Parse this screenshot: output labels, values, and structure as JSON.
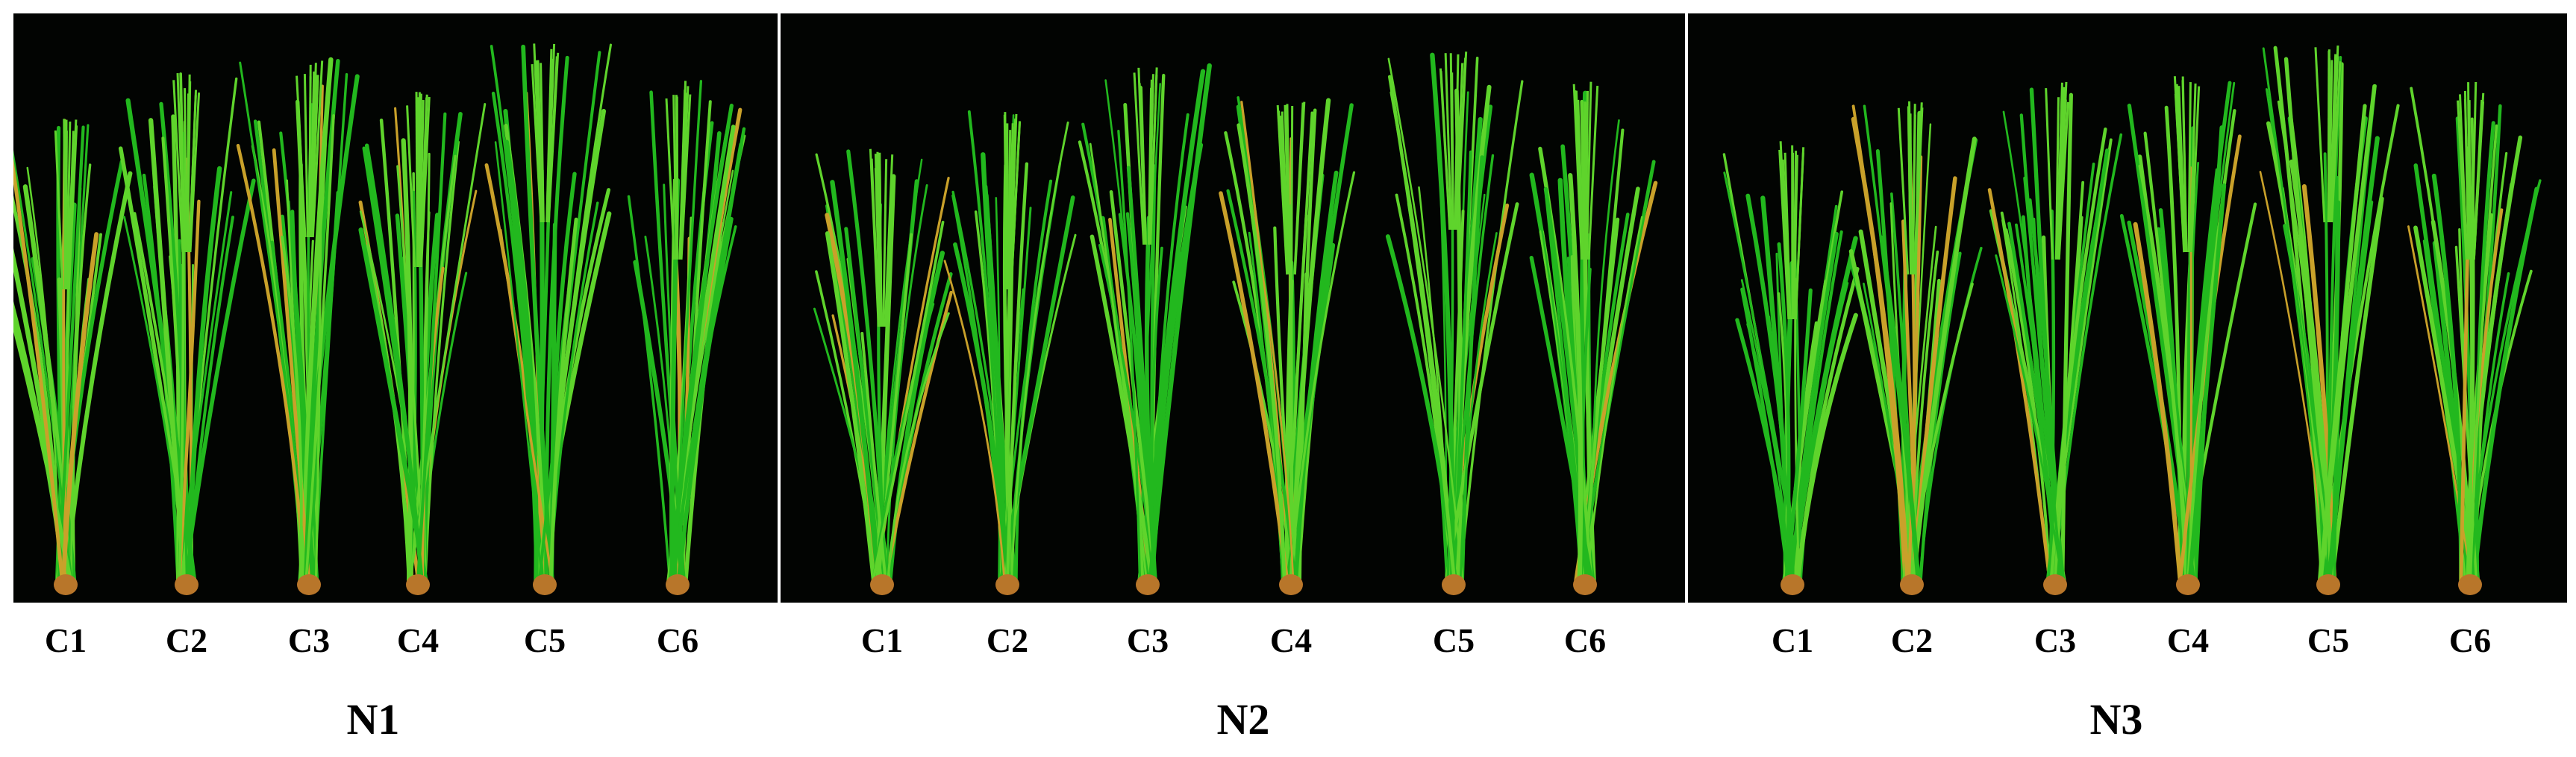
{
  "groups": [
    {
      "label": "N1",
      "cultivars": [
        "C1",
        "C2",
        "C3",
        "C4",
        "C5",
        "C6"
      ]
    },
    {
      "label": "N2",
      "cultivars": [
        "C1",
        "C2",
        "C3",
        "C4",
        "C5",
        "C6"
      ]
    },
    {
      "label": "N3",
      "cultivars": [
        "C1",
        "C2",
        "C3",
        "C4",
        "C5",
        "C6"
      ]
    }
  ],
  "colors": {
    "background": "#020402",
    "leaf": "#22b81e",
    "leaf_light": "#5fd42c",
    "senescent_leaf": "#c9a12a",
    "stem_base": "#b8762a"
  }
}
